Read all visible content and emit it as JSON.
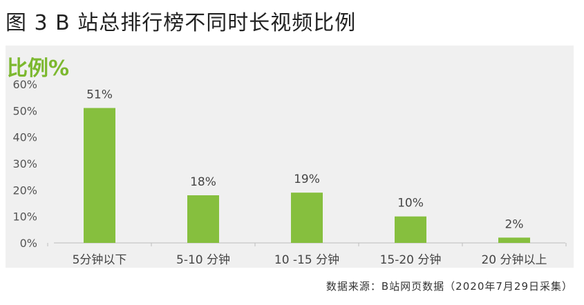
{
  "title": "图 3 B 站总排行榜不同时长视频比例",
  "source": "数据来源：B站网页数据（2020年7月29日采集）",
  "chart_data": {
    "type": "bar",
    "ylabel": "比例%",
    "categories": [
      "5分钟以下",
      "5-10 分钟",
      "10 -15 分钟",
      "15-20 分钟",
      "20 分钟以上"
    ],
    "values": [
      51,
      18,
      19,
      10,
      2
    ],
    "value_labels": [
      "51%",
      "18%",
      "19%",
      "10%",
      "2%"
    ],
    "yticks": [
      "0%",
      "10%",
      "20%",
      "30%",
      "40%",
      "50%",
      "60%"
    ],
    "ylim": [
      0,
      60
    ],
    "grid": false,
    "bar_color": "#86bf3e"
  }
}
